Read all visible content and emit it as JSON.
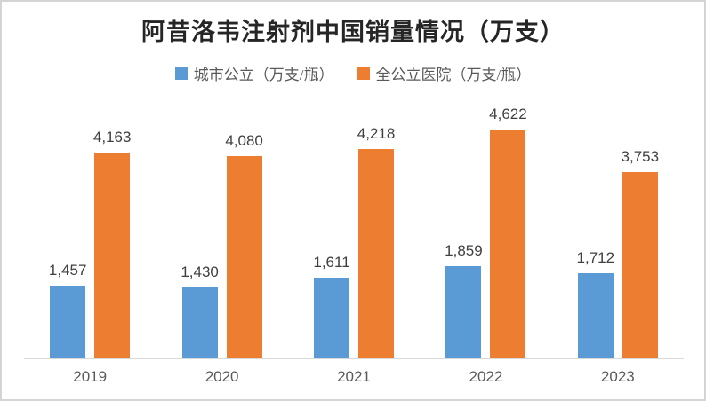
{
  "chart_data": {
    "type": "bar",
    "title": "阿昔洛韦注射剂中国销量情况（万支）",
    "categories": [
      "2019",
      "2020",
      "2021",
      "2022",
      "2023"
    ],
    "series": [
      {
        "name": "城市公立（万支/瓶）",
        "color": "#5B9BD5",
        "values": [
          1457,
          1430,
          1611,
          1859,
          1712
        ],
        "value_labels": [
          "1,457",
          "1,430",
          "1,611",
          "1,859",
          "1,712"
        ]
      },
      {
        "name": "全公立医院（万支/瓶）",
        "color": "#ED7D31",
        "values": [
          4163,
          4080,
          4218,
          4622,
          3753
        ],
        "value_labels": [
          "4,163",
          "4,080",
          "4,218",
          "4,622",
          "3,753"
        ]
      }
    ],
    "xlabel": "",
    "ylabel": "",
    "ylim": [
      0,
      5000
    ],
    "grid": false,
    "legend_position": "top",
    "value_labels_shown": true,
    "axis_line_color": "#D9D9D9",
    "title_color": "#262626",
    "label_color": "#404040",
    "tick_color": "#595959"
  }
}
